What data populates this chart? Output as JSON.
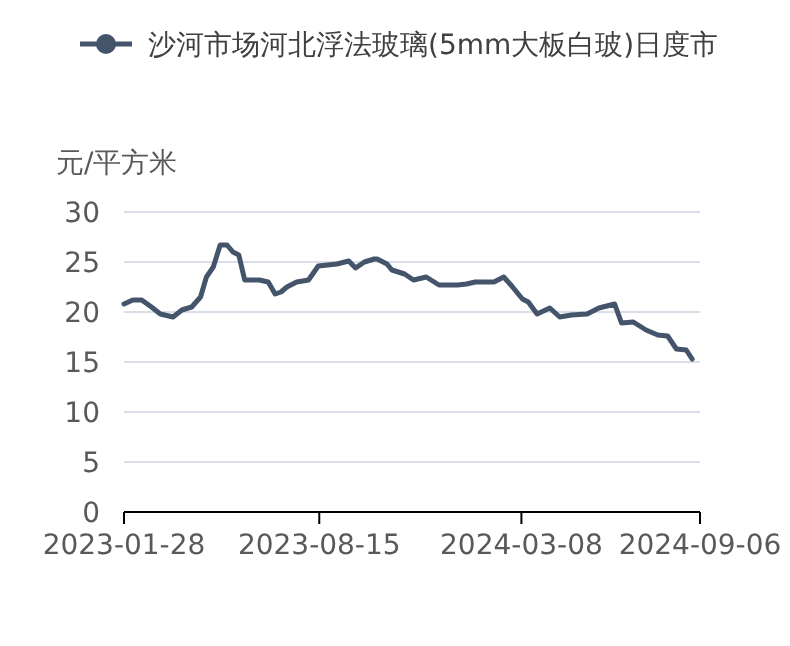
{
  "chart_data": {
    "type": "line",
    "ylabel": "元/平方米",
    "legend": "top",
    "line_style": "solid",
    "grid": "y",
    "ylim": [
      0,
      30
    ],
    "yticks": [
      0,
      5,
      10,
      15,
      20,
      25,
      30
    ],
    "xlim": [
      "2023-01-28",
      "2024-09-06"
    ],
    "xticks": [
      "2023-01-28",
      "2023-08-15",
      "2024-03-08",
      "2024-09-06"
    ],
    "series": [
      {
        "name": "沙河市场河北浮法玻璃(5mm大板白玻)日度市",
        "color": "#44546a",
        "x": [
          "2023-01-28",
          "2023-02-06",
          "2023-02-15",
          "2023-02-25",
          "2023-03-06",
          "2023-03-19",
          "2023-03-28",
          "2023-04-07",
          "2023-04-16",
          "2023-04-22",
          "2023-04-29",
          "2023-05-06",
          "2023-05-13",
          "2023-05-19",
          "2023-05-25",
          "2023-05-31",
          "2023-06-15",
          "2023-06-24",
          "2023-07-01",
          "2023-07-07",
          "2023-07-13",
          "2023-07-23",
          "2023-08-04",
          "2023-08-14",
          "2023-09-02",
          "2023-09-14",
          "2023-09-21",
          "2023-09-30",
          "2023-10-10",
          "2023-10-13",
          "2023-10-23",
          "2023-10-28",
          "2023-11-10",
          "2023-11-19",
          "2023-12-02",
          "2023-12-15",
          "2024-01-03",
          "2024-01-12",
          "2024-01-21",
          "2024-02-09",
          "2024-02-19",
          "2024-02-28",
          "2024-03-09",
          "2024-03-15",
          "2024-03-24",
          "2024-04-06",
          "2024-04-16",
          "2024-04-28",
          "2024-05-14",
          "2024-05-26",
          "2024-06-11",
          "2024-06-18",
          "2024-06-30",
          "2024-07-13",
          "2024-07-25",
          "2024-08-04",
          "2024-08-13",
          "2024-08-23",
          "2024-08-29"
        ],
        "values": [
          20.8,
          21.2,
          21.2,
          20.5,
          19.8,
          19.5,
          20.2,
          20.5,
          21.5,
          23.5,
          24.5,
          26.7,
          26.7,
          26.0,
          25.7,
          23.2,
          23.2,
          23.0,
          21.8,
          22.0,
          22.5,
          23.0,
          23.2,
          24.6,
          24.8,
          25.1,
          24.4,
          25.0,
          25.3,
          25.3,
          24.8,
          24.2,
          23.8,
          23.2,
          23.5,
          22.7,
          22.7,
          22.8,
          23.0,
          23.0,
          23.5,
          22.5,
          21.3,
          21.0,
          19.8,
          20.4,
          19.5,
          19.7,
          19.8,
          20.4,
          20.8,
          18.9,
          19.0,
          18.2,
          17.7,
          17.6,
          16.3,
          16.2,
          15.3
        ]
      }
    ]
  }
}
